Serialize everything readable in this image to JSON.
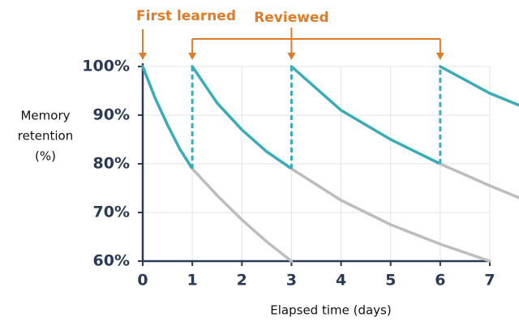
{
  "chart_data": {
    "type": "line",
    "xlabel": "Elapsed time (days)",
    "ylabel": [
      "Memory",
      "retention",
      "(%)"
    ],
    "xlim": [
      0,
      7
    ],
    "xticks": [
      0,
      1,
      2,
      3,
      4,
      5,
      6,
      7
    ],
    "ylim": [
      60,
      100
    ],
    "yticks": [
      {
        "value": 60,
        "label": "60%"
      },
      {
        "value": 70,
        "label": "70%"
      },
      {
        "value": 80,
        "label": "80%"
      },
      {
        "value": 90,
        "label": "90%"
      },
      {
        "value": 100,
        "label": "100%"
      }
    ],
    "grid": true,
    "series": [
      {
        "color": "#3aacb8",
        "x": [
          0,
          0.25,
          0.5,
          0.75,
          1
        ],
        "values": [
          100,
          93.5,
          88,
          83,
          79
        ]
      },
      {
        "color": "#bdbdbd",
        "x": [
          1,
          1.5,
          2,
          2.5,
          3
        ],
        "values": [
          79,
          73.5,
          68.5,
          64,
          60
        ]
      },
      {
        "color": "#3aacb8",
        "x": [
          1,
          1.5,
          2,
          2.5,
          3
        ],
        "values": [
          100,
          92.5,
          87,
          82.5,
          79
        ]
      },
      {
        "color": "#bdbdbd",
        "x": [
          3,
          4,
          5,
          6,
          7
        ],
        "values": [
          79,
          72.5,
          67.5,
          63.5,
          60
        ]
      },
      {
        "color": "#3aacb8",
        "x": [
          3,
          4,
          5,
          6
        ],
        "values": [
          100,
          91,
          85,
          80
        ]
      },
      {
        "color": "#bdbdbd",
        "x": [
          6,
          7,
          7.6
        ],
        "values": [
          80,
          75.5,
          73
        ]
      },
      {
        "color": "#3aacb8",
        "x": [
          6,
          7,
          7.6
        ],
        "values": [
          100,
          94.5,
          92
        ]
      }
    ],
    "annotations": [
      {
        "text": "First learned",
        "x": [
          0
        ],
        "color": "#e07b27"
      },
      {
        "text": "Reviewed",
        "x": [
          1,
          3,
          6
        ],
        "color": "#e07b27"
      }
    ]
  }
}
